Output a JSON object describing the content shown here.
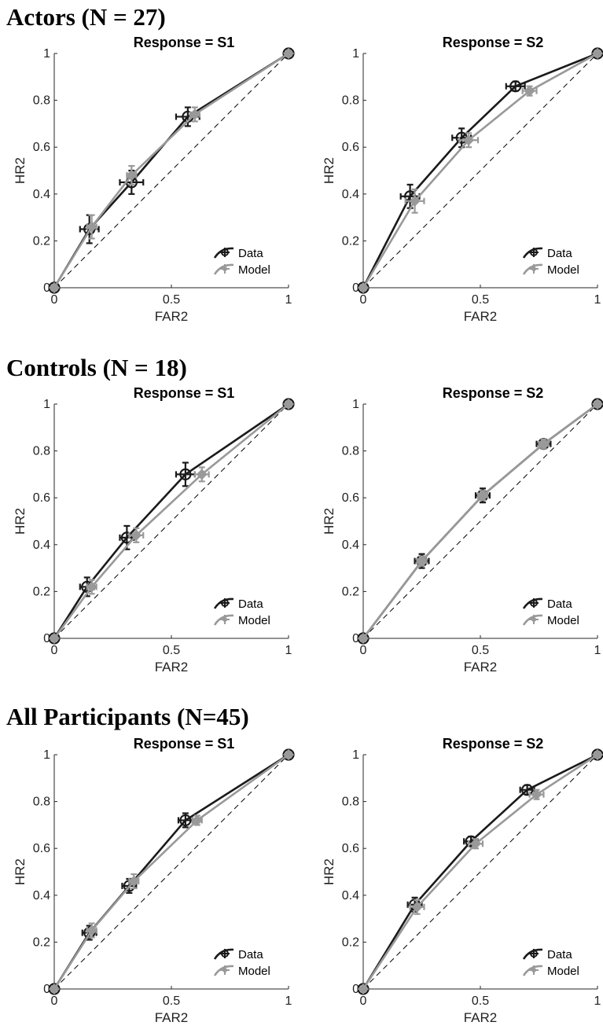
{
  "colors": {
    "data": "#1a1a1a",
    "model": "#999999",
    "axis": "#262626",
    "diagonal": "#000000"
  },
  "legend": {
    "data": "Data",
    "model": "Model",
    "placement": "bottom-right"
  },
  "axes": {
    "xlabel": "FAR2",
    "ylabel": "HR2",
    "xlim": [
      0,
      1
    ],
    "ylim": [
      0,
      1
    ],
    "xticks": [
      "0",
      "0.5",
      "1"
    ],
    "yticks": [
      "0",
      "0.2",
      "0.4",
      "0.6",
      "0.8",
      "1"
    ],
    "grid": false
  },
  "groups": [
    {
      "title": "Actors (N = 27)"
    },
    {
      "title": "Controls (N = 18)"
    },
    {
      "title": "All Participants  (N=45)"
    }
  ],
  "chart_data": [
    {
      "type": "line",
      "group": 0,
      "title": "Response = S1",
      "xlabel": "FAR2",
      "ylabel": "HR2",
      "xlim": [
        0,
        1
      ],
      "ylim": [
        0,
        1
      ],
      "series": [
        {
          "name": "Data",
          "x": [
            0,
            0.15,
            0.33,
            0.57,
            1
          ],
          "y": [
            0,
            0.25,
            0.45,
            0.73,
            1
          ],
          "xerr": [
            0,
            0.04,
            0.05,
            0.05,
            0
          ],
          "yerr": [
            0,
            0.06,
            0.05,
            0.04,
            0
          ]
        },
        {
          "name": "Model",
          "x": [
            0,
            0.16,
            0.33,
            0.6,
            1
          ],
          "y": [
            0,
            0.26,
            0.48,
            0.74,
            1
          ],
          "xerr": [
            0,
            0.02,
            0.02,
            0.02,
            0
          ],
          "yerr": [
            0,
            0.05,
            0.04,
            0.03,
            0
          ]
        }
      ]
    },
    {
      "type": "line",
      "group": 0,
      "title": "Response = S2",
      "xlabel": "FAR2",
      "ylabel": "HR2",
      "xlim": [
        0,
        1
      ],
      "ylim": [
        0,
        1
      ],
      "series": [
        {
          "name": "Data",
          "x": [
            0,
            0.2,
            0.42,
            0.65,
            1
          ],
          "y": [
            0,
            0.39,
            0.64,
            0.86,
            1
          ],
          "xerr": [
            0,
            0.04,
            0.04,
            0.04,
            0
          ],
          "yerr": [
            0,
            0.05,
            0.04,
            0.02,
            0
          ]
        },
        {
          "name": "Model",
          "x": [
            0,
            0.22,
            0.45,
            0.71,
            1
          ],
          "y": [
            0,
            0.37,
            0.63,
            0.84,
            1
          ],
          "xerr": [
            0,
            0.04,
            0.04,
            0.03,
            0
          ],
          "yerr": [
            0,
            0.05,
            0.03,
            0.02,
            0
          ]
        }
      ]
    },
    {
      "type": "line",
      "group": 1,
      "title": "Response = S1",
      "xlabel": "FAR2",
      "ylabel": "HR2",
      "xlim": [
        0,
        1
      ],
      "ylim": [
        0,
        1
      ],
      "series": [
        {
          "name": "Data",
          "x": [
            0,
            0.14,
            0.31,
            0.56,
            1
          ],
          "y": [
            0,
            0.22,
            0.43,
            0.7,
            1
          ],
          "xerr": [
            0,
            0.03,
            0.03,
            0.04,
            0
          ],
          "yerr": [
            0,
            0.04,
            0.05,
            0.05,
            0
          ]
        },
        {
          "name": "Model",
          "x": [
            0,
            0.16,
            0.35,
            0.63,
            1
          ],
          "y": [
            0,
            0.22,
            0.44,
            0.7,
            1
          ],
          "xerr": [
            0,
            0.02,
            0.03,
            0.03,
            0
          ],
          "yerr": [
            0,
            0.03,
            0.03,
            0.03,
            0
          ]
        }
      ]
    },
    {
      "type": "line",
      "group": 1,
      "title": "Response = S2",
      "xlabel": "FAR2",
      "ylabel": "HR2",
      "xlim": [
        0,
        1
      ],
      "ylim": [
        0,
        1
      ],
      "series": [
        {
          "name": "Data",
          "x": [
            0,
            0.25,
            0.51,
            0.77,
            1
          ],
          "y": [
            0,
            0.33,
            0.61,
            0.83,
            1
          ],
          "xerr": [
            0,
            0.03,
            0.03,
            0.03,
            0
          ],
          "yerr": [
            0,
            0.03,
            0.03,
            0.02,
            0
          ]
        },
        {
          "name": "Model",
          "x": [
            0,
            0.25,
            0.51,
            0.77,
            1
          ],
          "y": [
            0,
            0.33,
            0.61,
            0.83,
            1
          ],
          "xerr": [
            0,
            0.02,
            0.02,
            0.02,
            0
          ],
          "yerr": [
            0,
            0.02,
            0.02,
            0.02,
            0
          ]
        }
      ]
    },
    {
      "type": "line",
      "group": 2,
      "title": "Response = S1",
      "xlabel": "FAR2",
      "ylabel": "HR2",
      "xlim": [
        0,
        1
      ],
      "ylim": [
        0,
        1
      ],
      "series": [
        {
          "name": "Data",
          "x": [
            0,
            0.15,
            0.32,
            0.56,
            1
          ],
          "y": [
            0,
            0.24,
            0.44,
            0.72,
            1
          ],
          "xerr": [
            0,
            0.03,
            0.03,
            0.03,
            0
          ],
          "yerr": [
            0,
            0.03,
            0.03,
            0.03,
            0
          ]
        },
        {
          "name": "Model",
          "x": [
            0,
            0.16,
            0.34,
            0.61,
            1
          ],
          "y": [
            0,
            0.25,
            0.46,
            0.72,
            1
          ],
          "xerr": [
            0,
            0.02,
            0.02,
            0.02,
            0
          ],
          "yerr": [
            0,
            0.03,
            0.03,
            0.02,
            0
          ]
        }
      ]
    },
    {
      "type": "line",
      "group": 2,
      "title": "Response = S2",
      "xlabel": "FAR2",
      "ylabel": "HR2",
      "xlim": [
        0,
        1
      ],
      "ylim": [
        0,
        1
      ],
      "series": [
        {
          "name": "Data",
          "x": [
            0,
            0.22,
            0.46,
            0.7,
            1
          ],
          "y": [
            0,
            0.36,
            0.63,
            0.85,
            1
          ],
          "xerr": [
            0,
            0.03,
            0.03,
            0.03,
            0
          ],
          "yerr": [
            0,
            0.03,
            0.02,
            0.02,
            0
          ]
        },
        {
          "name": "Model",
          "x": [
            0,
            0.23,
            0.48,
            0.74,
            1
          ],
          "y": [
            0,
            0.35,
            0.62,
            0.83,
            1
          ],
          "xerr": [
            0,
            0.03,
            0.03,
            0.03,
            0
          ],
          "yerr": [
            0,
            0.03,
            0.02,
            0.02,
            0
          ]
        }
      ]
    }
  ]
}
